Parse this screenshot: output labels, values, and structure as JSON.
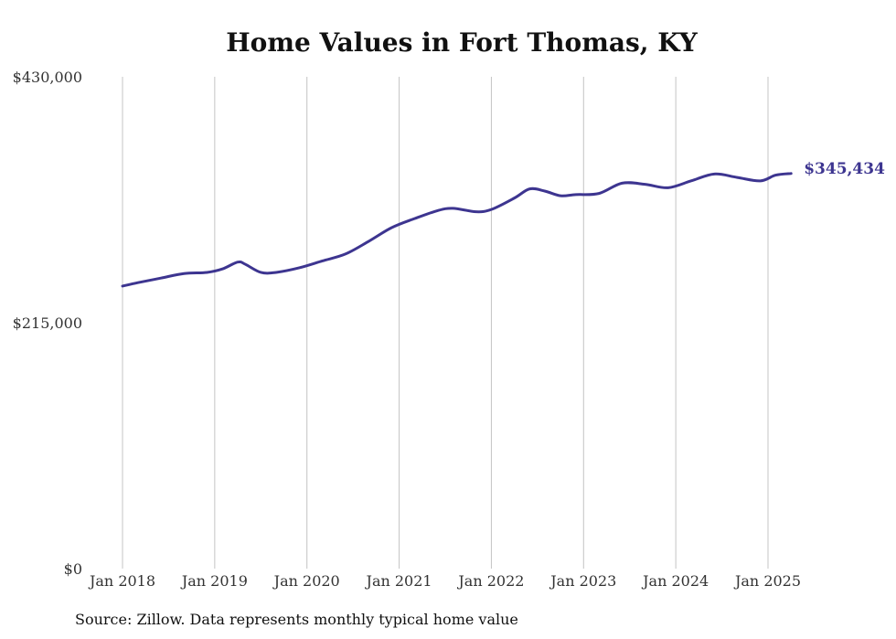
{
  "chart_data": {
    "type": "line",
    "title": "Home Values in Fort Thomas, KY",
    "note": "Source: Zillow. Data represents monthly typical home value",
    "xlabel": "",
    "ylabel": "",
    "ylim": [
      0,
      430000
    ],
    "y_ticks": [
      0,
      215000,
      430000
    ],
    "y_tick_labels": [
      "$0",
      "$215,000",
      "$430,000"
    ],
    "x_ticks": [
      "2018-01",
      "2019-01",
      "2020-01",
      "2021-01",
      "2022-01",
      "2023-01",
      "2024-01",
      "2025-01"
    ],
    "x_tick_labels": [
      "Jan 2018",
      "Jan 2019",
      "Jan 2020",
      "Jan 2021",
      "Jan 2022",
      "Jan 2023",
      "Jan 2024",
      "Jan 2025"
    ],
    "grid": "vertical",
    "line_color": "#3d3590",
    "end_label": "$345,434",
    "series": [
      {
        "x": [
          "2018-01",
          "2018-03",
          "2018-06",
          "2018-09",
          "2018-12",
          "2019-02",
          "2019-04",
          "2019-05",
          "2019-07",
          "2019-09",
          "2019-12",
          "2020-03",
          "2020-06",
          "2020-09",
          "2020-12",
          "2021-03",
          "2021-06",
          "2021-08",
          "2021-11",
          "2022-01",
          "2022-04",
          "2022-06",
          "2022-08",
          "2022-10",
          "2022-12",
          "2023-03",
          "2023-06",
          "2023-09",
          "2023-12",
          "2024-03",
          "2024-06",
          "2024-09",
          "2024-12",
          "2025-02",
          "2025-04"
        ],
        "y": [
          247000,
          250000,
          254000,
          258000,
          259000,
          262000,
          268000,
          266000,
          259000,
          259000,
          263000,
          269000,
          275000,
          286000,
          298000,
          306000,
          313000,
          315000,
          312000,
          314000,
          324000,
          332000,
          330000,
          326000,
          327000,
          328000,
          337000,
          336000,
          333000,
          339000,
          345000,
          342000,
          339000,
          344000,
          345434
        ]
      }
    ]
  }
}
